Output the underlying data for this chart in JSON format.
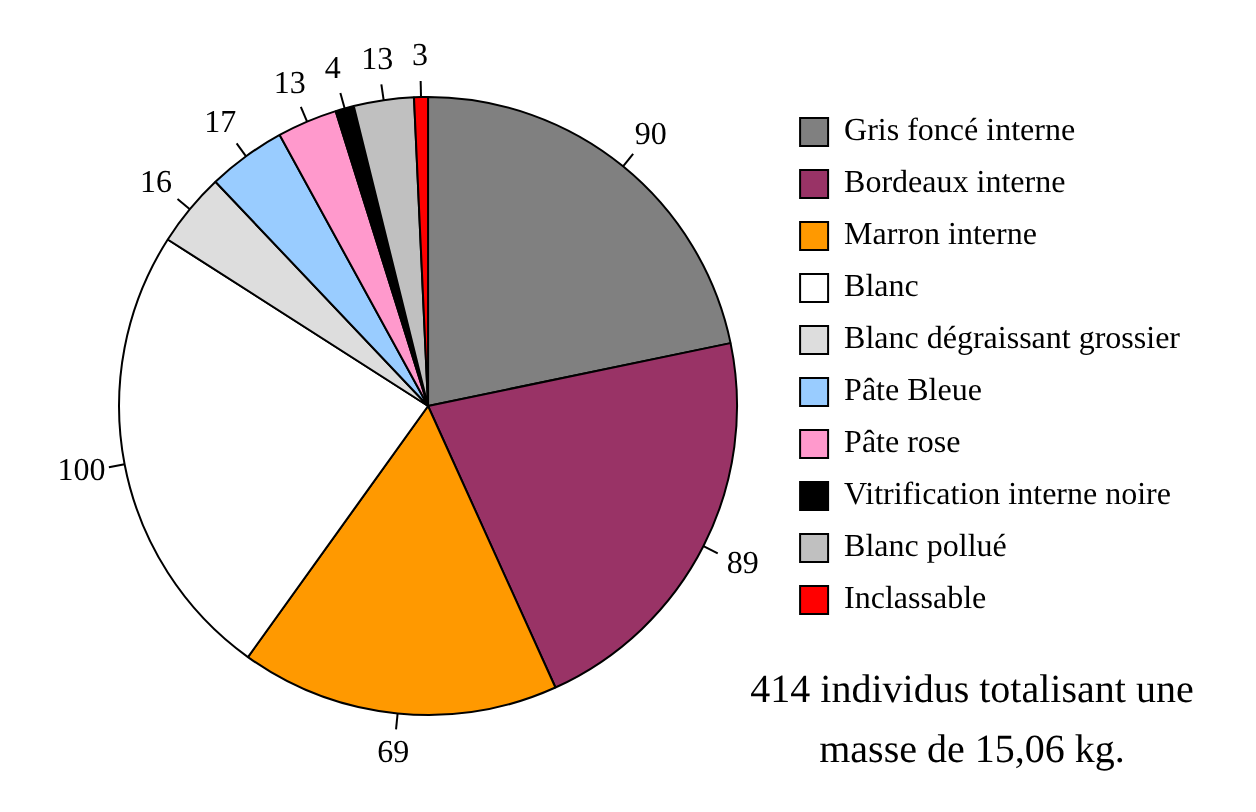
{
  "chart_data": {
    "type": "pie",
    "categories": [
      "Gris foncé interne",
      "Bordeaux interne",
      "Marron interne",
      "Blanc",
      "Blanc dégraissant grossier",
      "Pâte Bleue",
      "Pâte rose",
      "Vitrification interne noire",
      "Blanc pollué",
      "Inclassable"
    ],
    "values": [
      90,
      89,
      69,
      100,
      16,
      17,
      13,
      4,
      13,
      3
    ],
    "colors": [
      "#808080",
      "#993366",
      "#ff9900",
      "#ffffff",
      "#dddddd",
      "#99ccff",
      "#ff99cc",
      "#000000",
      "#c0c0c0",
      "#ff0000"
    ],
    "data_labels": true,
    "legend": "right",
    "annotations": [
      "414 individus totalisant une masse de 15,06 kg."
    ]
  }
}
